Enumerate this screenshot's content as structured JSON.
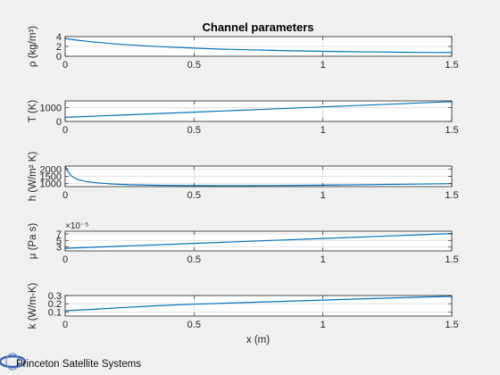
{
  "figure": {
    "title": "Channel parameters",
    "xlabel": "x (m)",
    "logo_text": "Princeton Satellite Systems"
  },
  "chart_data": [
    {
      "type": "line",
      "ylabel": "ρ (kg/m³)",
      "xlim": [
        0,
        1.5
      ],
      "ylim": [
        0,
        4
      ],
      "xticks": [
        "0",
        "0.5",
        "1",
        "1.5"
      ],
      "yticks": [
        {
          "v": 0,
          "t": "0"
        },
        {
          "v": 2,
          "t": "2"
        },
        {
          "v": 4,
          "t": "4"
        }
      ],
      "grid": true,
      "color": "#0072BD",
      "x": [
        0,
        0.02,
        0.05,
        0.1,
        0.2,
        0.3,
        0.4,
        0.5,
        0.6,
        0.7,
        0.8,
        0.9,
        1.0,
        1.1,
        1.2,
        1.3,
        1.4,
        1.5
      ],
      "y": [
        3.6,
        3.45,
        3.25,
        2.95,
        2.5,
        2.15,
        1.88,
        1.65,
        1.46,
        1.32,
        1.2,
        1.1,
        1.0,
        0.93,
        0.87,
        0.82,
        0.78,
        0.75
      ]
    },
    {
      "type": "line",
      "ylabel": "T (K)",
      "xlim": [
        0,
        1.5
      ],
      "ylim": [
        0,
        1500
      ],
      "xticks": [
        "0",
        "0.5",
        "1",
        "1.5"
      ],
      "yticks": [
        {
          "v": 0,
          "t": "0"
        },
        {
          "v": 1000,
          "t": "1000"
        }
      ],
      "grid": true,
      "color": "#0072BD",
      "x": [
        0,
        0.25,
        0.5,
        0.75,
        1.0,
        1.25,
        1.5
      ],
      "y": [
        300,
        490,
        680,
        870,
        1060,
        1250,
        1450
      ]
    },
    {
      "type": "line",
      "ylabel": "h (W/m² K)",
      "xlim": [
        0,
        1.5
      ],
      "ylim": [
        800,
        2200
      ],
      "xticks": [
        "0",
        "0.5",
        "1",
        "1.5"
      ],
      "yticks": [
        {
          "v": 1000,
          "t": "1000"
        },
        {
          "v": 1500,
          "t": "1500"
        },
        {
          "v": 2000,
          "t": "2000"
        }
      ],
      "grid": true,
      "color": "#0072BD",
      "x": [
        0,
        0.005,
        0.01,
        0.02,
        0.03,
        0.05,
        0.08,
        0.12,
        0.18,
        0.25,
        0.35,
        0.5,
        0.65,
        0.8,
        1.0,
        1.2,
        1.35,
        1.5
      ],
      "y": [
        2200,
        2050,
        1850,
        1600,
        1450,
        1280,
        1150,
        1060,
        980,
        930,
        890,
        865,
        860,
        870,
        900,
        940,
        970,
        1000
      ]
    },
    {
      "type": "line",
      "ylabel": "μ (Pa s)",
      "exponent_label": "×10⁻⁵",
      "xlim": [
        0,
        1.5
      ],
      "ylim": [
        1.8,
        7.8
      ],
      "xticks": [
        "0",
        "0.5",
        "1",
        "1.5"
      ],
      "yticks": [
        {
          "v": 3,
          "t": "3"
        },
        {
          "v": 5,
          "t": "5"
        },
        {
          "v": 7,
          "t": "7"
        }
      ],
      "grid": true,
      "color": "#0072BD",
      "x": [
        0,
        0.25,
        0.5,
        0.75,
        1.0,
        1.25,
        1.5
      ],
      "y": [
        2.6,
        3.35,
        4.1,
        4.85,
        5.6,
        6.35,
        7.1
      ]
    },
    {
      "type": "line",
      "ylabel": "k (W/m-K)",
      "xlim": [
        0,
        1.5
      ],
      "ylim": [
        0.05,
        0.3
      ],
      "xticks": [
        "0",
        "0.5",
        "1",
        "1.5"
      ],
      "yticks": [
        {
          "v": 0.1,
          "t": "0.1"
        },
        {
          "v": 0.2,
          "t": "0.2"
        },
        {
          "v": 0.3,
          "t": "0.3"
        }
      ],
      "grid": true,
      "color": "#0072BD",
      "x": [
        0,
        0.1,
        0.2,
        0.35,
        0.5,
        0.75,
        1.0,
        1.25,
        1.5
      ],
      "y": [
        0.115,
        0.13,
        0.15,
        0.175,
        0.195,
        0.22,
        0.245,
        0.268,
        0.29
      ]
    }
  ]
}
